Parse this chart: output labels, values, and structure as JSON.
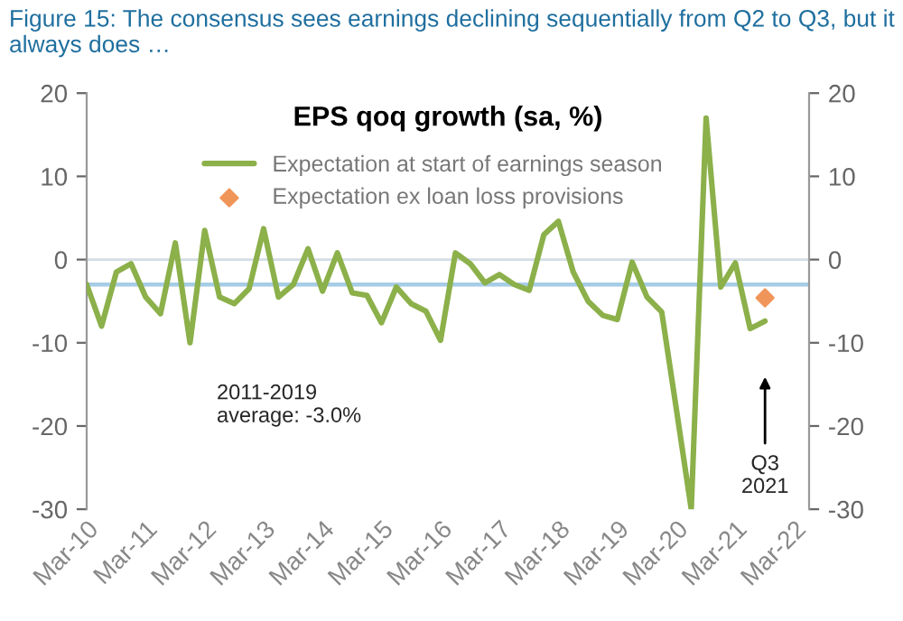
{
  "chart_data": {
    "type": "line",
    "title": "Figure 15: The consensus sees earnings declining sequentially from Q2 to Q3, but it always does …",
    "subtitle": "EPS qoq growth (sa, %)",
    "x": [
      "2010-03",
      "2010-06",
      "2010-09",
      "2010-12",
      "2011-03",
      "2011-06",
      "2011-09",
      "2011-12",
      "2012-03",
      "2012-06",
      "2012-09",
      "2012-12",
      "2013-03",
      "2013-06",
      "2013-09",
      "2013-12",
      "2014-03",
      "2014-06",
      "2014-09",
      "2014-12",
      "2015-03",
      "2015-06",
      "2015-09",
      "2015-12",
      "2016-03",
      "2016-06",
      "2016-09",
      "2016-12",
      "2017-03",
      "2017-06",
      "2017-09",
      "2017-12",
      "2018-03",
      "2018-06",
      "2018-09",
      "2018-12",
      "2019-03",
      "2019-06",
      "2019-09",
      "2019-12",
      "2020-03",
      "2020-06",
      "2020-09",
      "2020-12",
      "2021-03",
      "2021-06",
      "2021-09"
    ],
    "series": [
      {
        "name": "Expectation at start of earnings season",
        "color": "#8cb04a",
        "marker": "none",
        "values": [
          -3.0,
          -8.0,
          -1.5,
          -0.5,
          -4.5,
          -6.5,
          2.0,
          -10.0,
          3.5,
          -4.5,
          -5.3,
          -3.5,
          3.7,
          -4.5,
          -3.0,
          1.3,
          -3.8,
          0.8,
          -4.0,
          -4.3,
          -7.6,
          -3.3,
          -5.3,
          -6.2,
          -9.7,
          0.8,
          -0.5,
          -2.8,
          -1.8,
          -3.0,
          -3.7,
          3.0,
          4.6,
          -1.5,
          -5.0,
          -6.7,
          -7.2,
          -0.3,
          -4.5,
          -6.3,
          -18.0,
          -30.0,
          17.0,
          -3.3,
          -0.4,
          -8.3,
          -7.4
        ]
      },
      {
        "name": "Expectation ex loan loss provisions",
        "color": "#f0955a",
        "type": "scatter",
        "marker": "diamond",
        "x": [
          "2021-09"
        ],
        "values": [
          -4.6
        ]
      }
    ],
    "xlim": [
      "2010-03",
      "2022-06"
    ],
    "xticks": [
      {
        "value": "2010-03",
        "label": "Mar-10"
      },
      {
        "value": "2011-03",
        "label": "Mar-11"
      },
      {
        "value": "2012-03",
        "label": "Mar-12"
      },
      {
        "value": "2013-03",
        "label": "Mar-13"
      },
      {
        "value": "2014-03",
        "label": "Mar-14"
      },
      {
        "value": "2015-03",
        "label": "Mar-15"
      },
      {
        "value": "2016-03",
        "label": "Mar-16"
      },
      {
        "value": "2017-03",
        "label": "Mar-17"
      },
      {
        "value": "2018-03",
        "label": "Mar-18"
      },
      {
        "value": "2019-03",
        "label": "Mar-19"
      },
      {
        "value": "2020-03",
        "label": "Mar-20"
      },
      {
        "value": "2021-03",
        "label": "Mar-21"
      },
      {
        "value": "2022-03",
        "label": "Mar-22"
      }
    ],
    "ylim": [
      -30,
      20
    ],
    "yticks": [
      -30,
      -20,
      -10,
      0,
      10,
      20
    ],
    "y2lim": [
      -30,
      20
    ],
    "y2ticks": [
      -30,
      -20,
      -10,
      0,
      10,
      20
    ],
    "ref_lines": [
      {
        "axis": "y",
        "value": 0,
        "color": "#d4dde6"
      },
      {
        "axis": "y",
        "value": -3.0,
        "color": "#a6cde6"
      }
    ],
    "annotations": [
      "2011-2019\naverage: -3.0%",
      "Q3\n2021"
    ],
    "grid": false,
    "legend": "top"
  }
}
